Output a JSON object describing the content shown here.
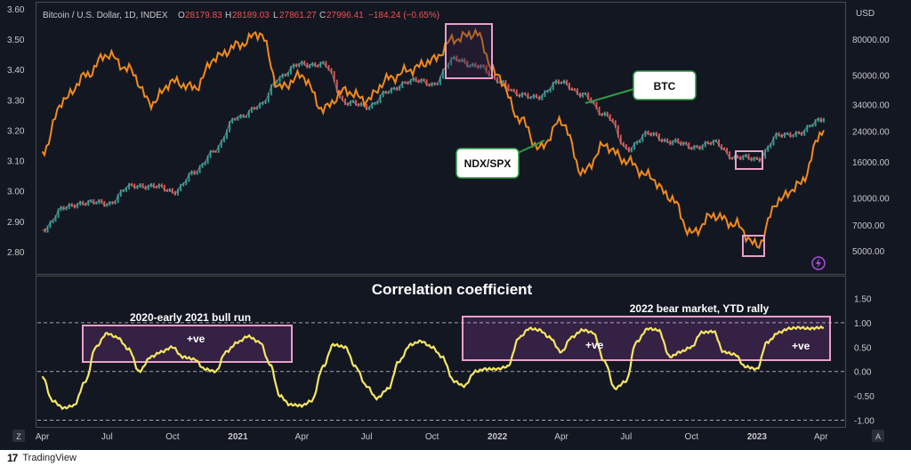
{
  "header": {
    "symbol": "Bitcoin / U.S. Dollar, 1D, INDEX",
    "o_label": "O",
    "o_value": "28179.83",
    "h_label": "H",
    "h_value": "28189.03",
    "l_label": "L",
    "l_value": "27861.27",
    "c_label": "C",
    "c_value": "27996.41",
    "change": "−184.24 (−0.65%)"
  },
  "colors": {
    "background": "#131722",
    "border": "#4a4a4a",
    "axis_text": "#c8c8c8",
    "btc": "#8c8c8c",
    "btc_up": "#26a69a",
    "btc_down": "#ef5350",
    "ratio": "#f28a1c",
    "correlation": "#f5e663",
    "highlight_border": "#e8a0c8",
    "highlight_fill": "#3a2248",
    "value_red": "#ef5350",
    "callout_border": "#2e9b47"
  },
  "chart_data": [
    {
      "type": "line",
      "title": "",
      "series": [
        {
          "name": "BTC",
          "x": [
            "2020-04-01",
            "2020-05-01",
            "2020-06-01",
            "2020-07-01",
            "2020-08-01",
            "2020-09-01",
            "2020-10-01",
            "2020-11-01",
            "2020-12-01",
            "2021-01-01",
            "2021-02-01",
            "2021-03-01",
            "2021-04-01",
            "2021-05-01",
            "2021-06-01",
            "2021-07-01",
            "2021-08-01",
            "2021-09-01",
            "2021-10-01",
            "2021-11-01",
            "2021-12-01",
            "2022-01-01",
            "2022-02-01",
            "2022-03-01",
            "2022-04-01",
            "2022-05-01",
            "2022-06-01",
            "2022-07-01",
            "2022-08-01",
            "2022-09-01",
            "2022-10-01",
            "2022-11-01",
            "2022-12-01",
            "2023-01-01",
            "2023-02-01",
            "2023-03-01",
            "2023-04-05"
          ],
          "values": [
            6600,
            8700,
            9500,
            9200,
            11500,
            11800,
            10800,
            13800,
            19000,
            29000,
            33000,
            49000,
            58000,
            57000,
            35000,
            33000,
            40000,
            47000,
            44000,
            61000,
            57000,
            47000,
            38000,
            38000,
            46000,
            38000,
            30000,
            19000,
            23000,
            21000,
            19500,
            20500,
            17000,
            16600,
            22500,
            23500,
            28000
          ]
        },
        {
          "name": "NDX/SPX",
          "x": [
            "2020-04-01",
            "2020-05-01",
            "2020-06-01",
            "2020-07-01",
            "2020-08-01",
            "2020-09-01",
            "2020-10-01",
            "2020-11-01",
            "2020-12-01",
            "2021-01-01",
            "2021-02-01",
            "2021-03-01",
            "2021-04-01",
            "2021-05-01",
            "2021-06-01",
            "2021-07-01",
            "2021-08-01",
            "2021-09-01",
            "2021-10-01",
            "2021-11-01",
            "2021-12-01",
            "2022-01-01",
            "2022-02-01",
            "2022-03-01",
            "2022-04-01",
            "2022-05-01",
            "2022-06-01",
            "2022-07-01",
            "2022-08-01",
            "2022-09-01",
            "2022-10-01",
            "2022-11-01",
            "2022-12-01",
            "2023-01-01",
            "2023-02-01",
            "2023-03-01",
            "2023-04-05"
          ],
          "values": [
            3.13,
            3.3,
            3.38,
            3.45,
            3.4,
            3.29,
            3.36,
            3.34,
            3.44,
            3.48,
            3.52,
            3.34,
            3.38,
            3.27,
            3.33,
            3.3,
            3.37,
            3.4,
            3.43,
            3.5,
            3.52,
            3.38,
            3.24,
            3.14,
            3.23,
            3.06,
            3.15,
            3.1,
            3.05,
            2.98,
            2.86,
            2.92,
            2.89,
            2.82,
            2.97,
            3.02,
            3.2
          ]
        }
      ],
      "left_ylim": [
        2.75,
        3.6
      ],
      "left_ticks": [
        "3.60",
        "3.50",
        "3.40",
        "3.30",
        "3.20",
        "3.10",
        "3.00",
        "2.90",
        "2.80"
      ],
      "right_label": "USD",
      "right_scale": "log",
      "right_ticks": [
        "80000.00",
        "50000.00",
        "34000.00",
        "24000.00",
        "16000.00",
        "10000.00",
        "7000.00",
        "5000.00"
      ],
      "annotations": [
        "BTC",
        "NDX/SPX"
      ]
    },
    {
      "type": "line",
      "title": "Correlation coefficient",
      "series": [
        {
          "name": "",
          "x": [
            "2020-04-01",
            "2020-04-15",
            "2020-05-01",
            "2020-05-15",
            "2020-06-01",
            "2020-06-15",
            "2020-07-01",
            "2020-07-15",
            "2020-08-01",
            "2020-08-15",
            "2020-09-01",
            "2020-09-15",
            "2020-10-01",
            "2020-10-15",
            "2020-11-01",
            "2020-11-15",
            "2020-12-01",
            "2020-12-15",
            "2021-01-01",
            "2021-01-15",
            "2021-02-01",
            "2021-02-15",
            "2021-03-01",
            "2021-03-15",
            "2021-04-01",
            "2021-04-15",
            "2021-05-01",
            "2021-05-15",
            "2021-06-01",
            "2021-06-15",
            "2021-07-01",
            "2021-07-15",
            "2021-08-01",
            "2021-08-15",
            "2021-09-01",
            "2021-09-15",
            "2021-10-01",
            "2021-10-15",
            "2021-11-01",
            "2021-11-15",
            "2021-12-01",
            "2021-12-15",
            "2022-01-01",
            "2022-01-15",
            "2022-02-01",
            "2022-02-15",
            "2022-03-01",
            "2022-03-15",
            "2022-04-01",
            "2022-04-15",
            "2022-05-01",
            "2022-05-15",
            "2022-06-01",
            "2022-06-15",
            "2022-07-01",
            "2022-07-15",
            "2022-08-01",
            "2022-08-15",
            "2022-09-01",
            "2022-09-15",
            "2022-10-01",
            "2022-10-15",
            "2022-11-01",
            "2022-11-15",
            "2022-12-01",
            "2022-12-15",
            "2023-01-01",
            "2023-01-15",
            "2023-02-01",
            "2023-02-15",
            "2023-03-01",
            "2023-03-15",
            "2023-04-01",
            "2023-04-05"
          ],
          "values": [
            -0.1,
            -0.6,
            -0.75,
            -0.7,
            -0.2,
            0.5,
            0.78,
            0.7,
            0.45,
            0.0,
            0.3,
            0.4,
            0.5,
            0.3,
            0.25,
            0.05,
            0.0,
            0.4,
            0.6,
            0.72,
            0.6,
            0.15,
            -0.5,
            -0.68,
            -0.7,
            -0.6,
            0.1,
            0.55,
            0.5,
            0.1,
            -0.3,
            -0.55,
            -0.35,
            0.2,
            0.55,
            0.62,
            0.5,
            0.3,
            -0.2,
            -0.3,
            0.0,
            0.05,
            0.05,
            0.1,
            0.7,
            0.88,
            0.85,
            0.7,
            0.4,
            0.7,
            0.85,
            0.8,
            0.2,
            -0.35,
            -0.2,
            0.6,
            0.88,
            0.85,
            0.3,
            0.4,
            0.5,
            0.8,
            0.82,
            0.4,
            0.35,
            0.1,
            0.05,
            0.6,
            0.8,
            0.88,
            0.9,
            0.88,
            0.9,
            0.9
          ]
        }
      ],
      "ylim": [
        -1.1,
        1.6
      ],
      "y_ticks": [
        "1.50",
        "1.00",
        "0.50",
        "0.00",
        "-0.50",
        "-1.00"
      ],
      "reference_lines": [
        1.0,
        0.0,
        -1.0
      ],
      "x_ticks": [
        "Apr",
        "Jul",
        "Oct",
        "2021",
        "Apr",
        "Jul",
        "Oct",
        "2022",
        "Apr",
        "Jul",
        "Oct",
        "2023",
        "Apr"
      ],
      "x_tick_dates": [
        "2020-04-01",
        "2020-07-01",
        "2020-10-01",
        "2021-01-01",
        "2021-04-01",
        "2021-07-01",
        "2021-10-01",
        "2022-01-01",
        "2022-04-01",
        "2022-07-01",
        "2022-10-01",
        "2023-01-01",
        "2023-04-01"
      ],
      "annotations": {
        "bull_label": "2020-early 2021 bull run",
        "bear_label": "2022 bear market, YTD rally",
        "positive_1": "+ve",
        "positive_2": "+ve",
        "positive_3": "+ve"
      }
    }
  ],
  "footer": {
    "logo_text": "17",
    "brand": "TradingView"
  },
  "corner_left": "Z",
  "corner_right": "A"
}
